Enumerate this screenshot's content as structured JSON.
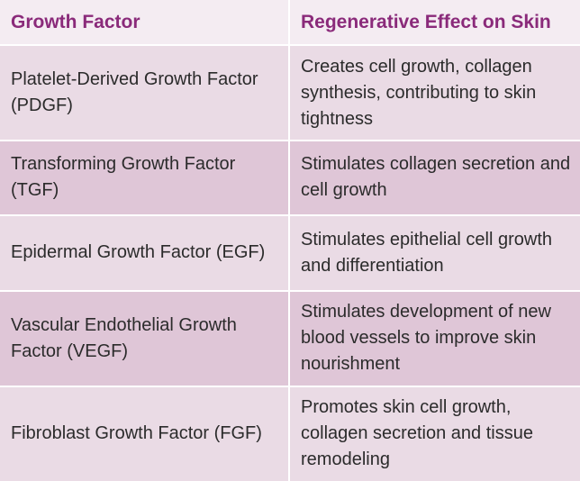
{
  "table": {
    "headers": [
      "Growth Factor",
      "Regenerative Effect on Skin"
    ],
    "rows": [
      {
        "factor": "Platelet-Derived Growth Factor (PDGF)",
        "effect": "Creates cell growth, collagen synthesis, contributing to skin tightness"
      },
      {
        "factor": "Transforming Growth Factor (TGF)",
        "effect": "Stimulates collagen secretion and cell growth"
      },
      {
        "factor": "Epidermal Growth Factor (EGF)",
        "effect": "Stimulates epithelial cell growth and differentiation"
      },
      {
        "factor": "Vascular Endothelial Growth Factor (VEGF)",
        "effect": "Stimulates development of new blood vessels to improve skin nourishment"
      },
      {
        "factor": "Fibroblast Growth Factor (FGF)",
        "effect": "Promotes skin cell growth, collagen secretion and tissue remodeling"
      }
    ]
  }
}
